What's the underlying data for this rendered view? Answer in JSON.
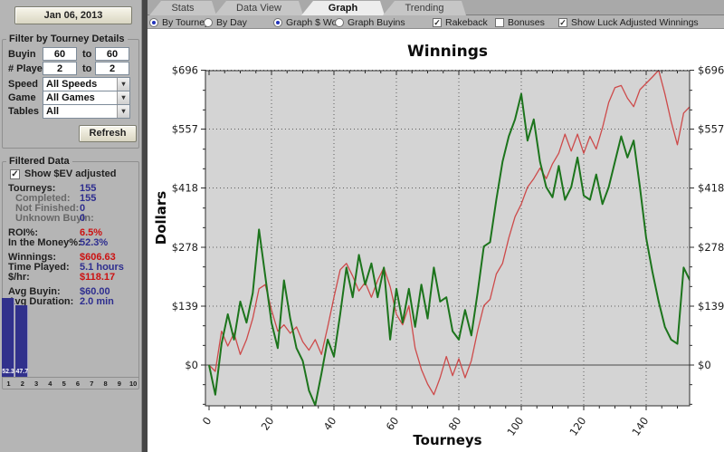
{
  "left_panel": {
    "date_button_label": "Jan 06, 2013",
    "filter_group": {
      "title": "Filter by Tourney Details",
      "buyin_label": "Buyin",
      "buyin_from": "60",
      "buyin_to_word": "to",
      "buyin_to": "60",
      "players_label": "# Players",
      "players_from": "2",
      "players_to_word": "to",
      "players_to": "2",
      "speed_label": "Speed",
      "speed_value": "All Speeds",
      "game_label": "Game",
      "game_value": "All Games",
      "tables_label": "Tables",
      "tables_value": "All",
      "refresh_button_label": "Refresh"
    },
    "filtered_data": {
      "title": "Filtered Data",
      "ev_checkbox": {
        "label": "Show $EV adjusted",
        "checked": true
      },
      "stats": [
        {
          "label": "Tourneys:",
          "value": "155",
          "color": "navy"
        },
        {
          "label": "Completed:",
          "value": "155",
          "color": "navy",
          "indent": true
        },
        {
          "label": "Not Finished:",
          "value": "0",
          "color": "navy",
          "indent": true
        },
        {
          "label": "Unknown Buyin:",
          "value": "0",
          "color": "navy",
          "indent": true
        },
        {
          "label": "ROI%:",
          "value": "6.5%",
          "color": "red",
          "gap": true
        },
        {
          "label": "In the Money%:",
          "value": "52.3%",
          "color": "navy"
        },
        {
          "label": "Winnings:",
          "value": "$606.63",
          "color": "red",
          "gap": true
        },
        {
          "label": "Time Played:",
          "value": "5.1 hours",
          "color": "navy"
        },
        {
          "label": "$/hr:",
          "value": "$118.17",
          "color": "red"
        },
        {
          "label": "Avg Buyin:",
          "value": "$60.00",
          "color": "navy",
          "gap": true
        },
        {
          "label": "Avg Duration:",
          "value": "2.0 min",
          "color": "navy"
        }
      ]
    }
  },
  "tabs": [
    {
      "label": "Stats",
      "active": false
    },
    {
      "label": "Data View",
      "active": false
    },
    {
      "label": "Graph",
      "active": true
    },
    {
      "label": "Trending",
      "active": false
    }
  ],
  "toolbar": {
    "radios": [
      {
        "label": "By Tourney",
        "selected": true
      },
      {
        "label": "By Day",
        "selected": false
      },
      {
        "label": "Graph $ Won",
        "selected": true
      },
      {
        "label": "Graph Buyins",
        "selected": false
      }
    ],
    "checkboxes": [
      {
        "label": "Rakeback",
        "checked": true
      },
      {
        "label": "Bonuses",
        "checked": false
      },
      {
        "label": "Show Luck Adjusted Winnings",
        "checked": true
      }
    ]
  },
  "chart_data": [
    {
      "type": "line",
      "title": "Winnings",
      "xlabel": "Tourneys",
      "ylabel": "Dollars",
      "xlim": [
        0,
        154
      ],
      "ylim": [
        -96,
        696
      ],
      "x_ticks": [
        0,
        20,
        40,
        60,
        80,
        100,
        120,
        140
      ],
      "y_ticks": [
        0,
        139,
        278,
        418,
        557,
        696
      ],
      "y_tick_prefix": "$",
      "grid": "dotted major gridlines both axes; solid gray line at $0; gray plot background",
      "legend_position": "none",
      "x_start": 0,
      "x_step": 2,
      "series": [
        {
          "name": "Winnings ($ Won)",
          "color": "#cd4a4a",
          "values": [
            0,
            -15,
            80,
            45,
            75,
            25,
            60,
            110,
            180,
            190,
            130,
            80,
            95,
            75,
            90,
            55,
            35,
            60,
            25,
            90,
            160,
            225,
            240,
            210,
            175,
            195,
            160,
            200,
            230,
            185,
            120,
            95,
            140,
            40,
            -10,
            -45,
            -70,
            -30,
            20,
            -25,
            15,
            -30,
            10,
            80,
            140,
            155,
            215,
            240,
            300,
            350,
            380,
            420,
            440,
            465,
            440,
            475,
            500,
            545,
            505,
            545,
            500,
            540,
            510,
            560,
            620,
            655,
            660,
            630,
            610,
            650,
            665,
            680,
            696,
            640,
            575,
            520,
            595,
            610
          ]
        },
        {
          "name": "Luck Adjusted Winnings",
          "color": "#1c741c",
          "values": [
            0,
            -70,
            50,
            120,
            60,
            150,
            100,
            170,
            320,
            210,
            100,
            40,
            200,
            110,
            40,
            10,
            -60,
            -95,
            -20,
            60,
            20,
            120,
            230,
            160,
            260,
            190,
            240,
            160,
            230,
            60,
            180,
            100,
            180,
            90,
            190,
            110,
            230,
            150,
            160,
            80,
            60,
            130,
            70,
            170,
            280,
            290,
            390,
            480,
            540,
            580,
            640,
            530,
            580,
            480,
            420,
            396,
            470,
            390,
            420,
            490,
            400,
            390,
            450,
            380,
            420,
            480,
            540,
            490,
            530,
            420,
            300,
            220,
            150,
            90,
            60,
            50,
            230,
            200
          ]
        }
      ]
    },
    {
      "type": "bar",
      "categories": [
        "1",
        "2",
        "3",
        "4",
        "5",
        "6",
        "7",
        "8",
        "9",
        "10"
      ],
      "values": [
        52.3,
        47.7,
        0,
        0,
        0,
        0,
        0,
        0,
        0,
        0
      ],
      "bar_labels": [
        "52.3",
        "47.7"
      ],
      "ylim": [
        0,
        60
      ],
      "bar_color": "#31318c"
    }
  ],
  "colors": {
    "panel_bg": "#b5b5b5",
    "plot_bg": "#d4d4d4",
    "winnings_line": "#cd4a4a",
    "luck_adjusted_line": "#1c741c",
    "stat_navy": "#2e2e8f",
    "stat_red": "#cc1111",
    "histogram_bar": "#31318c"
  }
}
